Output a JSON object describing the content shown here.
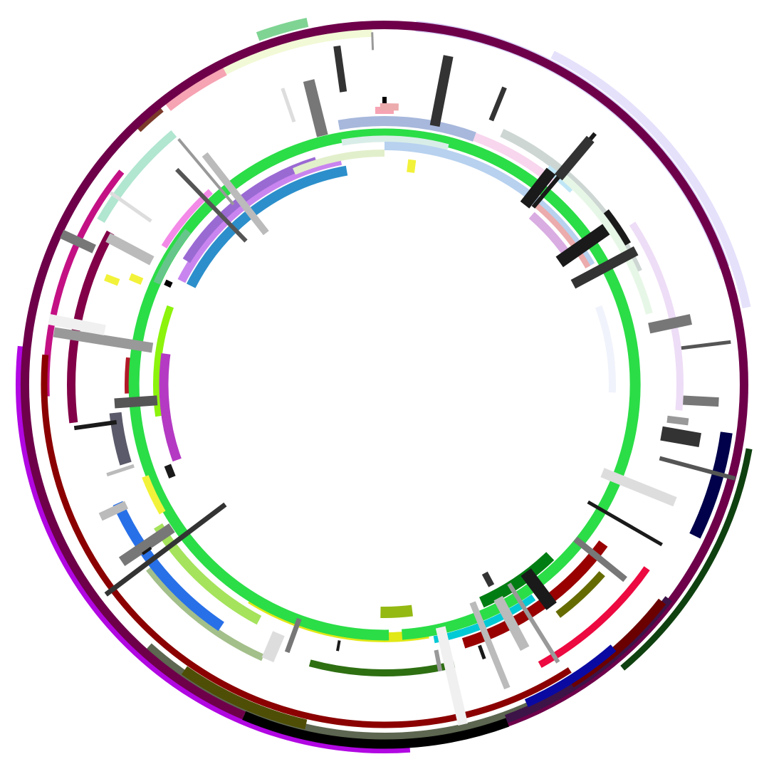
{
  "colors": {
    "background": "#ffffff",
    "palette": [
      "#7b3a2a",
      "#f6a3b3",
      "#7fd493",
      "#f2f9d6",
      "#d7d0f8",
      "#e5e1fb",
      "#b1e6d1",
      "#c31184",
      "#6a0fa9",
      "#b107e2",
      "#8b0000",
      "#5c6650",
      "#4f4e06",
      "#6e004a",
      "#000000",
      "#3d1447",
      "#6b0000",
      "#0a0aa3",
      "#0f4110",
      "#ec0a40",
      "#00004b",
      "#051f05",
      "#b11927",
      "#820047",
      "#5a5a6a",
      "#a3bf8a",
      "#2870e8",
      "#a5e35c",
      "#e1e815",
      "#94b913",
      "#2bdd47",
      "#00cad5",
      "#ea0a55",
      "#007d12",
      "#666b00",
      "#990000",
      "#2e6f12",
      "#2c8fcb",
      "#c985ef",
      "#9a6ad3",
      "#66c58b",
      "#8cf30c",
      "#b43ac3",
      "#f2f23a",
      "#f38ae7",
      "#a7b8dc",
      "#d9ede8",
      "#b7d1ef",
      "#e2efcb",
      "#ecabac",
      "#d9ace2",
      "#cdd6d3",
      "#f0f3fb",
      "#f8d6ee",
      "#bfe6f6",
      "#e7f7e7",
      "#eeddf6",
      "#1a1a1a",
      "#333333",
      "#555555",
      "#777777",
      "#999999",
      "#bbbbbb",
      "#dddddd",
      "#f0f0f0"
    ]
  }
}
